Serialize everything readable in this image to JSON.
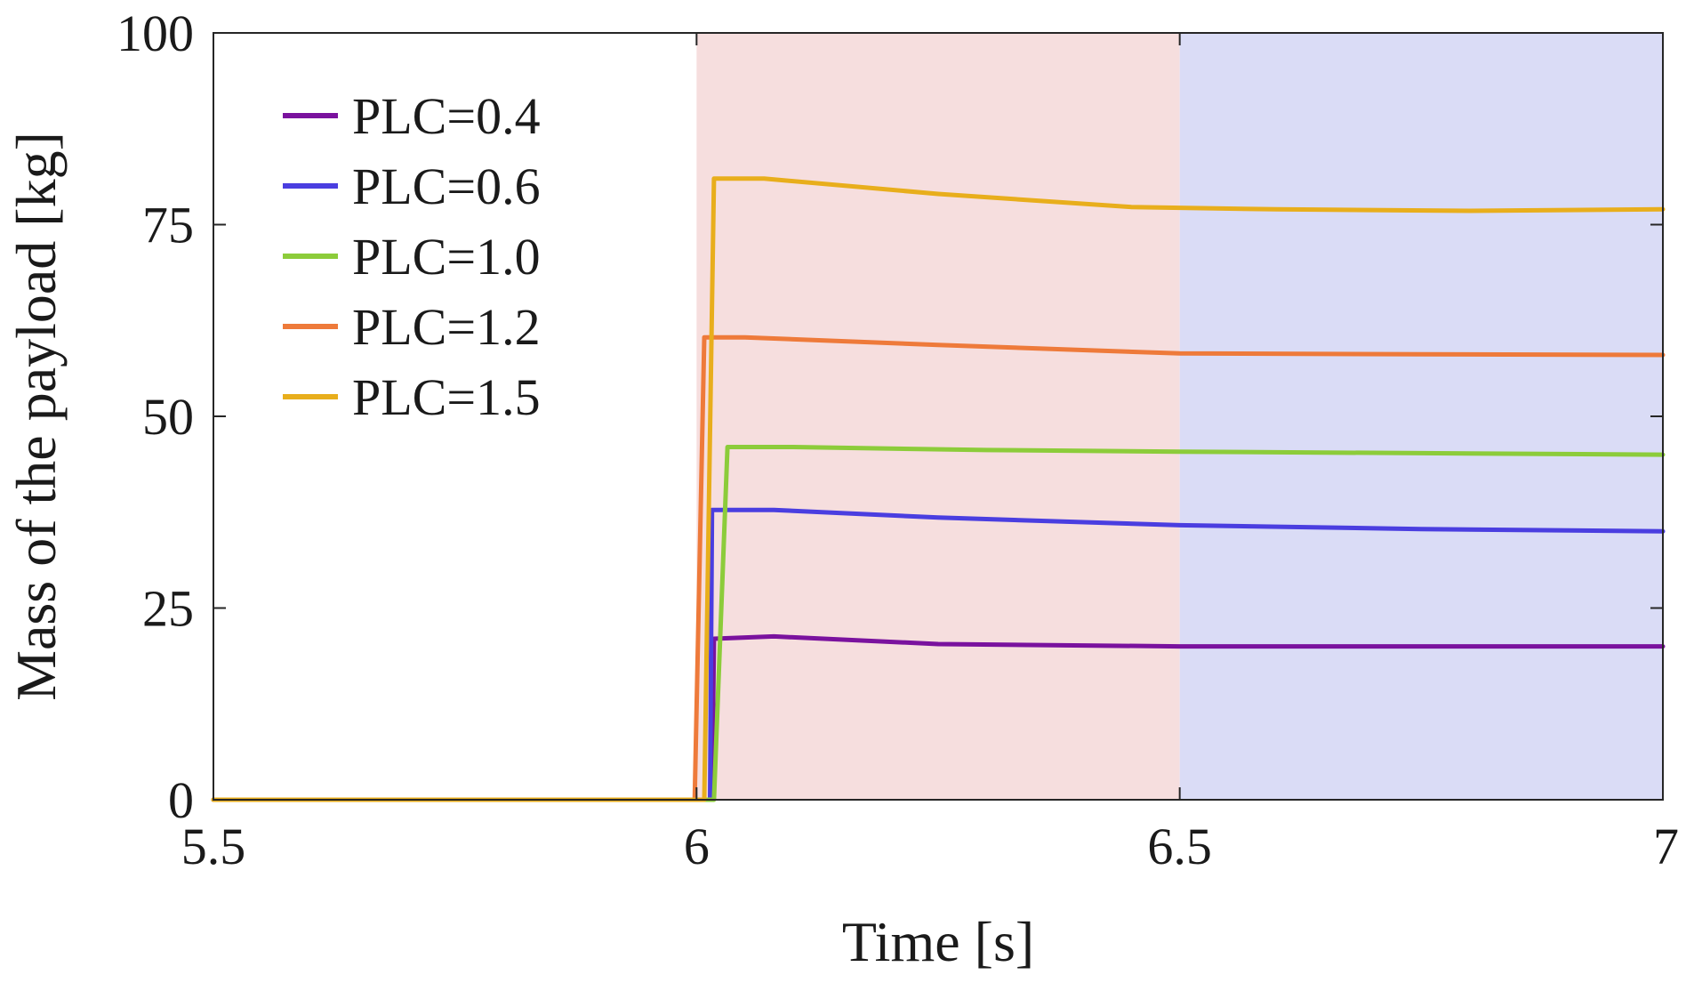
{
  "chart_data": {
    "type": "line",
    "title": "",
    "xlabel": "Time [s]",
    "ylabel": "Mass of the payload [kg]",
    "xlim": [
      5.5,
      7
    ],
    "ylim": [
      0,
      100
    ],
    "xticks": [
      5.5,
      6,
      6.5,
      7
    ],
    "xtick_labels": [
      "5.5",
      "6",
      "6.5",
      "7"
    ],
    "yticks": [
      0,
      25,
      50,
      75,
      100
    ],
    "ytick_labels": [
      "0",
      "25",
      "50",
      "75",
      "100"
    ],
    "grid": false,
    "legend_position": "top-left",
    "shaded_regions": [
      {
        "x0": 6.0,
        "x1": 6.5,
        "color": "#f6dede"
      },
      {
        "x0": 6.5,
        "x1": 7.0,
        "color": "#dadcf6"
      }
    ],
    "series": [
      {
        "name": "PLC=0.4",
        "color": "#7a129e",
        "x": [
          5.5,
          6.016,
          6.018,
          6.08,
          6.25,
          6.5,
          6.75,
          7.0
        ],
        "y": [
          0,
          0,
          21,
          21.3,
          20.3,
          20,
          20,
          20
        ]
      },
      {
        "name": "PLC=0.6",
        "color": "#4a3ee0",
        "x": [
          5.5,
          6.014,
          6.016,
          6.08,
          6.25,
          6.5,
          6.75,
          7.0
        ],
        "y": [
          0,
          0,
          37.8,
          37.8,
          36.8,
          35.8,
          35.3,
          35
        ]
      },
      {
        "name": "PLC=1.0",
        "color": "#8ccc3a",
        "x": [
          5.5,
          6.018,
          6.032,
          6.1,
          6.3,
          6.5,
          6.75,
          7.0
        ],
        "y": [
          0,
          0,
          46,
          46,
          45.6,
          45.4,
          45.2,
          45
        ]
      },
      {
        "name": "PLC=1.2",
        "color": "#ee7a3a",
        "x": [
          5.5,
          5.998,
          6.008,
          6.05,
          6.25,
          6.5,
          6.75,
          7.0
        ],
        "y": [
          0,
          0,
          60.3,
          60.3,
          59.3,
          58.2,
          58.1,
          58
        ]
      },
      {
        "name": "PLC=1.5",
        "color": "#e8ae1c",
        "x": [
          5.5,
          6.008,
          6.018,
          6.07,
          6.25,
          6.45,
          6.6,
          6.8,
          7.0
        ],
        "y": [
          0,
          0,
          81,
          81,
          79,
          77.3,
          77,
          76.8,
          77
        ]
      }
    ]
  }
}
